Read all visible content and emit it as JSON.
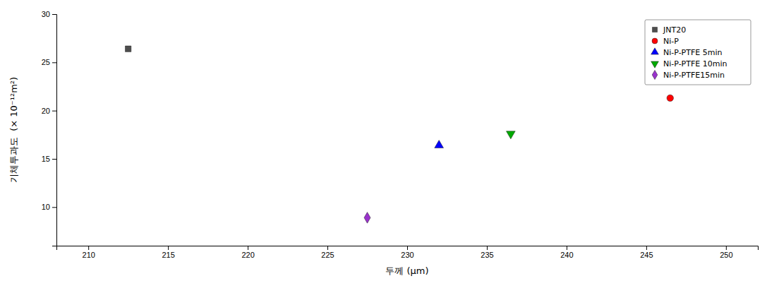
{
  "chart_data": {
    "type": "scatter",
    "xlabel": "두께 (μm)",
    "ylabel": "기체투과도  (× 10⁻¹²m²)",
    "series": [
      {
        "name": "JNT20",
        "x": [
          212.5
        ],
        "values": [
          26.4
        ],
        "color": "#4d4d4d",
        "marker": "square"
      },
      {
        "name": "Ni-P",
        "x": [
          246.5
        ],
        "values": [
          21.3
        ],
        "color": "#ff0000",
        "marker": "circle"
      },
      {
        "name": "Ni-P-PTFE 5min",
        "x": [
          232.0
        ],
        "values": [
          16.4
        ],
        "color": "#0000ff",
        "marker": "triangle-up"
      },
      {
        "name": "Ni-P-PTFE 10min",
        "x": [
          236.5
        ],
        "values": [
          17.6
        ],
        "color": "#00aa00",
        "marker": "triangle-down"
      },
      {
        "name": "Ni-P-PTFE15min",
        "x": [
          227.5
        ],
        "values": [
          8.9
        ],
        "color": "#9932cc",
        "marker": "diamond"
      }
    ],
    "xlim": [
      208,
      252
    ],
    "ylim": [
      6,
      30
    ],
    "xticks": [
      210,
      215,
      220,
      225,
      230,
      235,
      240,
      245,
      250
    ],
    "yticks": [
      10,
      15,
      20,
      25,
      30
    ],
    "grid": false,
    "legend": "upper-right"
  }
}
